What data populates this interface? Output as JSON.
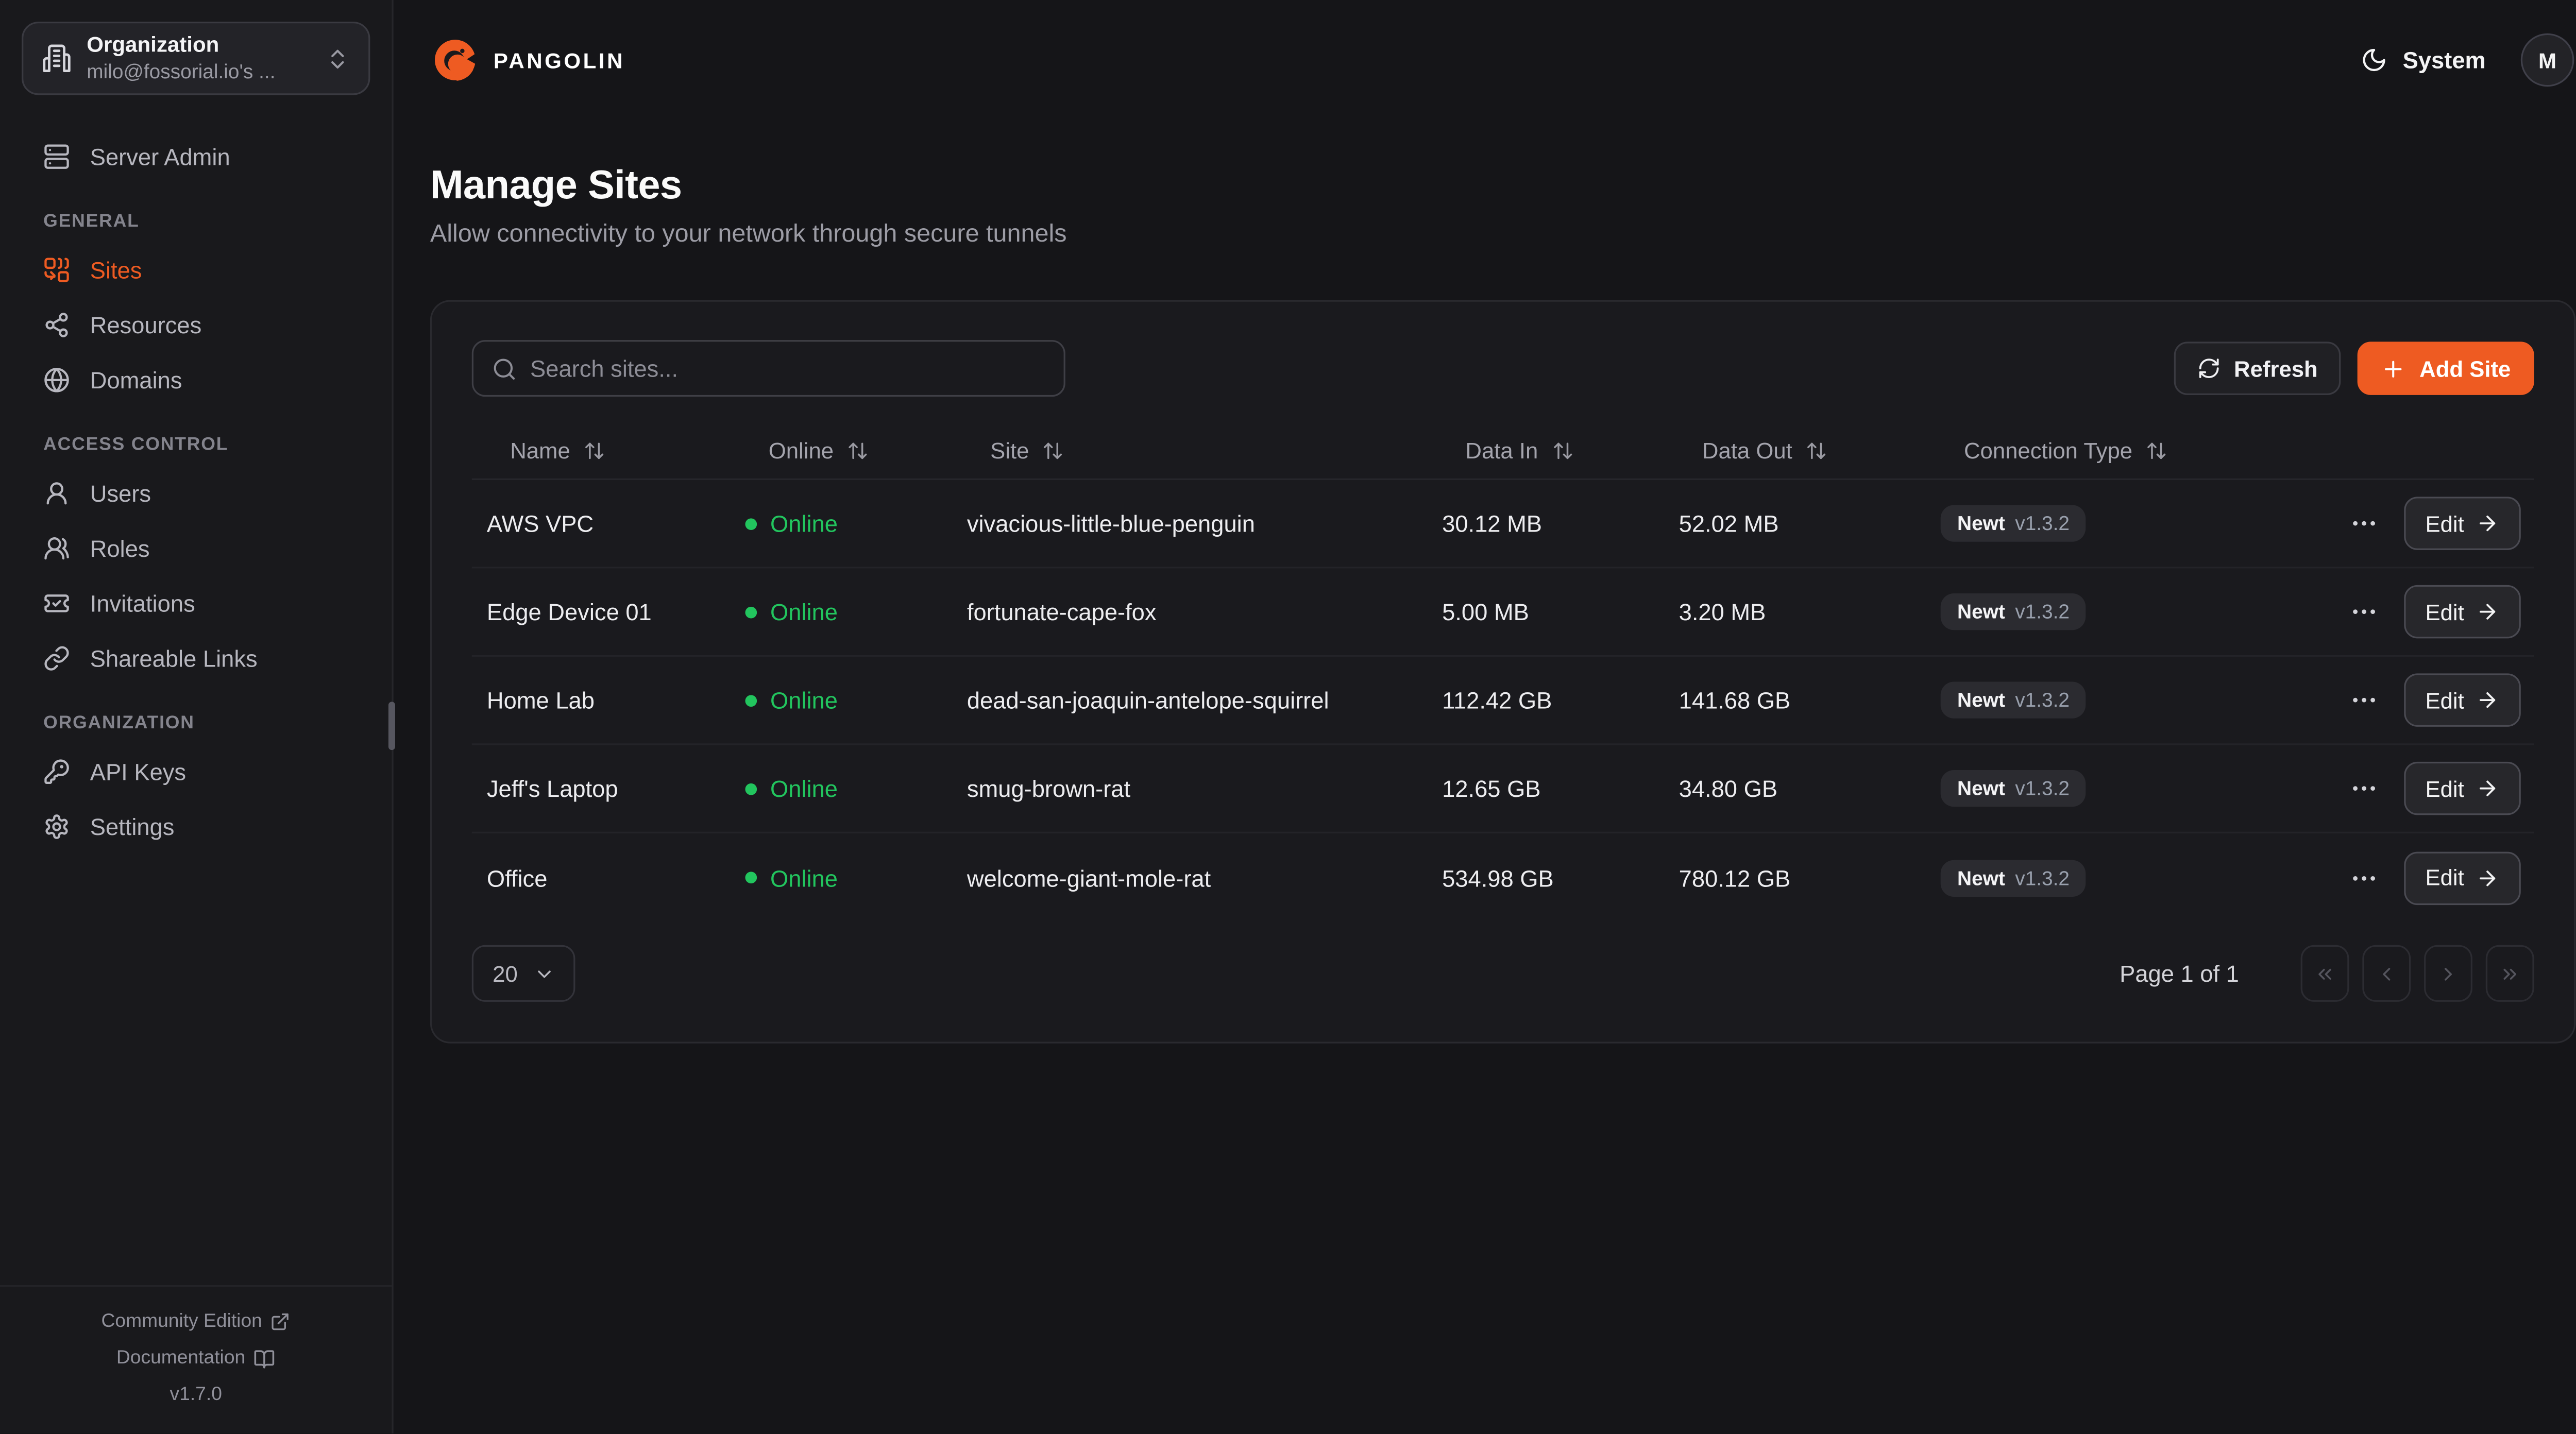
{
  "sidebar": {
    "org_switcher": {
      "label": "Organization",
      "value": "milo@fossorial.io's ..."
    },
    "server_admin": {
      "label": "Server Admin",
      "icon": "server"
    },
    "sections": [
      {
        "label": "GENERAL",
        "items": [
          {
            "label": "Sites",
            "icon": "combine",
            "active": true
          },
          {
            "label": "Resources",
            "icon": "share"
          },
          {
            "label": "Domains",
            "icon": "globe"
          }
        ]
      },
      {
        "label": "ACCESS CONTROL",
        "items": [
          {
            "label": "Users",
            "icon": "user"
          },
          {
            "label": "Roles",
            "icon": "users"
          },
          {
            "label": "Invitations",
            "icon": "ticket-check"
          },
          {
            "label": "Shareable Links",
            "icon": "link"
          }
        ]
      },
      {
        "label": "ORGANIZATION",
        "items": [
          {
            "label": "API Keys",
            "icon": "key"
          },
          {
            "label": "Settings",
            "icon": "gear"
          }
        ]
      }
    ],
    "footer": {
      "community": "Community Edition",
      "documentation": "Documentation",
      "version": "v1.7.0"
    }
  },
  "topbar": {
    "brand": "PANGOLIN",
    "theme_label": "System",
    "avatar_initial": "M"
  },
  "page": {
    "title": "Manage Sites",
    "subtitle": "Allow connectivity to your network through secure tunnels"
  },
  "toolbar": {
    "search_placeholder": "Search sites...",
    "refresh_label": "Refresh",
    "add_site_label": "Add Site"
  },
  "table": {
    "columns": [
      "Name",
      "Online",
      "Site",
      "Data In",
      "Data Out",
      "Connection Type"
    ],
    "edit_label": "Edit",
    "rows": [
      {
        "name": "AWS VPC",
        "status": "Online",
        "site": "vivacious-little-blue-penguin",
        "data_in": "30.12 MB",
        "data_out": "52.02 MB",
        "conn_type": "Newt",
        "conn_version": "v1.3.2"
      },
      {
        "name": "Edge Device 01",
        "status": "Online",
        "site": "fortunate-cape-fox",
        "data_in": "5.00 MB",
        "data_out": "3.20 MB",
        "conn_type": "Newt",
        "conn_version": "v1.3.2"
      },
      {
        "name": "Home Lab",
        "status": "Online",
        "site": "dead-san-joaquin-antelope-squirrel",
        "data_in": "112.42 GB",
        "data_out": "141.68 GB",
        "conn_type": "Newt",
        "conn_version": "v1.3.2"
      },
      {
        "name": "Jeff's Laptop",
        "status": "Online",
        "site": "smug-brown-rat",
        "data_in": "12.65 GB",
        "data_out": "34.80 GB",
        "conn_type": "Newt",
        "conn_version": "v1.3.2"
      },
      {
        "name": "Office",
        "status": "Online",
        "site": "welcome-giant-mole-rat",
        "data_in": "534.98 GB",
        "data_out": "780.12 GB",
        "conn_type": "Newt",
        "conn_version": "v1.3.2"
      }
    ]
  },
  "pagination": {
    "page_size": "20",
    "page_label": "Page 1 of 1"
  },
  "colors": {
    "accent": "#EE5B22",
    "online": "#22C55E"
  }
}
